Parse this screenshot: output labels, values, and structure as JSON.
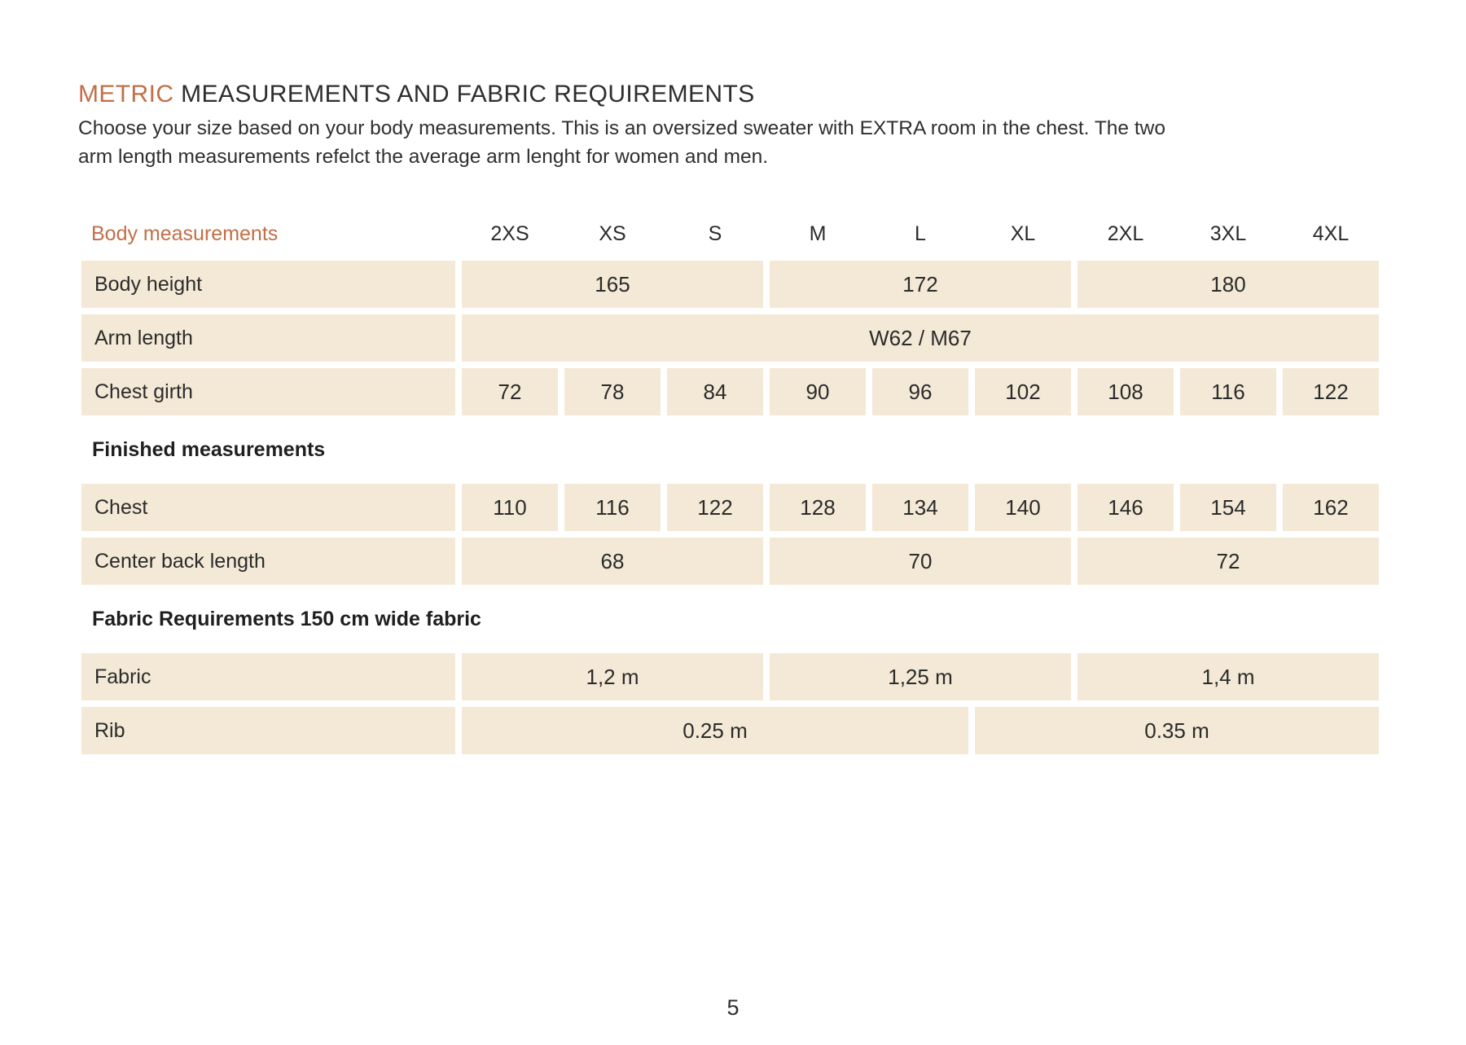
{
  "document": {
    "title": {
      "accent": "METRIC",
      "rest": " MEASUREMENTS AND FABRIC REQUIREMENTS"
    },
    "intro_line1": "Choose your size based on your body measurements. This is an oversized sweater with EXTRA room in the chest. The two",
    "intro_line2": "arm length measurements refelct the average arm lenght for women and men.",
    "page_number": "5"
  },
  "colors": {
    "accent_orange": "#C26F47",
    "cell_beige": "#F3E9D6",
    "text_dark": "#2E2E2E"
  },
  "table": {
    "header": {
      "label": "Body measurements",
      "sizes": [
        "2XS",
        "XS",
        "S",
        "M",
        "L",
        "XL",
        "2XL",
        "3XL",
        "4XL"
      ]
    },
    "rows": [
      {
        "type": "data",
        "label": "Body height",
        "cells": [
          {
            "span": 3,
            "value": "165"
          },
          {
            "span": 3,
            "value": "172"
          },
          {
            "span": 3,
            "value": "180"
          }
        ]
      },
      {
        "type": "data",
        "label": "Arm length",
        "cells": [
          {
            "span": 9,
            "value": "W62 / M67"
          }
        ]
      },
      {
        "type": "data",
        "label": "Chest girth",
        "cells": [
          {
            "span": 1,
            "value": "72"
          },
          {
            "span": 1,
            "value": "78"
          },
          {
            "span": 1,
            "value": "84"
          },
          {
            "span": 1,
            "value": "90"
          },
          {
            "span": 1,
            "value": "96"
          },
          {
            "span": 1,
            "value": "102"
          },
          {
            "span": 1,
            "value": "108"
          },
          {
            "span": 1,
            "value": "116"
          },
          {
            "span": 1,
            "value": "122"
          }
        ]
      },
      {
        "type": "heading",
        "label": "Finished measurements"
      },
      {
        "type": "data",
        "label": "Chest",
        "cells": [
          {
            "span": 1,
            "value": "110"
          },
          {
            "span": 1,
            "value": "116"
          },
          {
            "span": 1,
            "value": "122"
          },
          {
            "span": 1,
            "value": "128"
          },
          {
            "span": 1,
            "value": "134"
          },
          {
            "span": 1,
            "value": "140"
          },
          {
            "span": 1,
            "value": "146"
          },
          {
            "span": 1,
            "value": "154"
          },
          {
            "span": 1,
            "value": "162"
          }
        ]
      },
      {
        "type": "data",
        "label": "Center back length",
        "cells": [
          {
            "span": 3,
            "value": "68"
          },
          {
            "span": 3,
            "value": "70"
          },
          {
            "span": 3,
            "value": "72"
          }
        ]
      },
      {
        "type": "heading",
        "label": "Fabric Requirements 150 cm wide fabric"
      },
      {
        "type": "data",
        "label": "Fabric",
        "cells": [
          {
            "span": 3,
            "value": "1,2 m"
          },
          {
            "span": 3,
            "value": "1,25 m"
          },
          {
            "span": 3,
            "value": "1,4 m"
          }
        ]
      },
      {
        "type": "data",
        "label": "Rib",
        "cells": [
          {
            "span": 5,
            "value": "0.25 m"
          },
          {
            "span": 4,
            "value": "0.35 m"
          }
        ]
      }
    ]
  }
}
